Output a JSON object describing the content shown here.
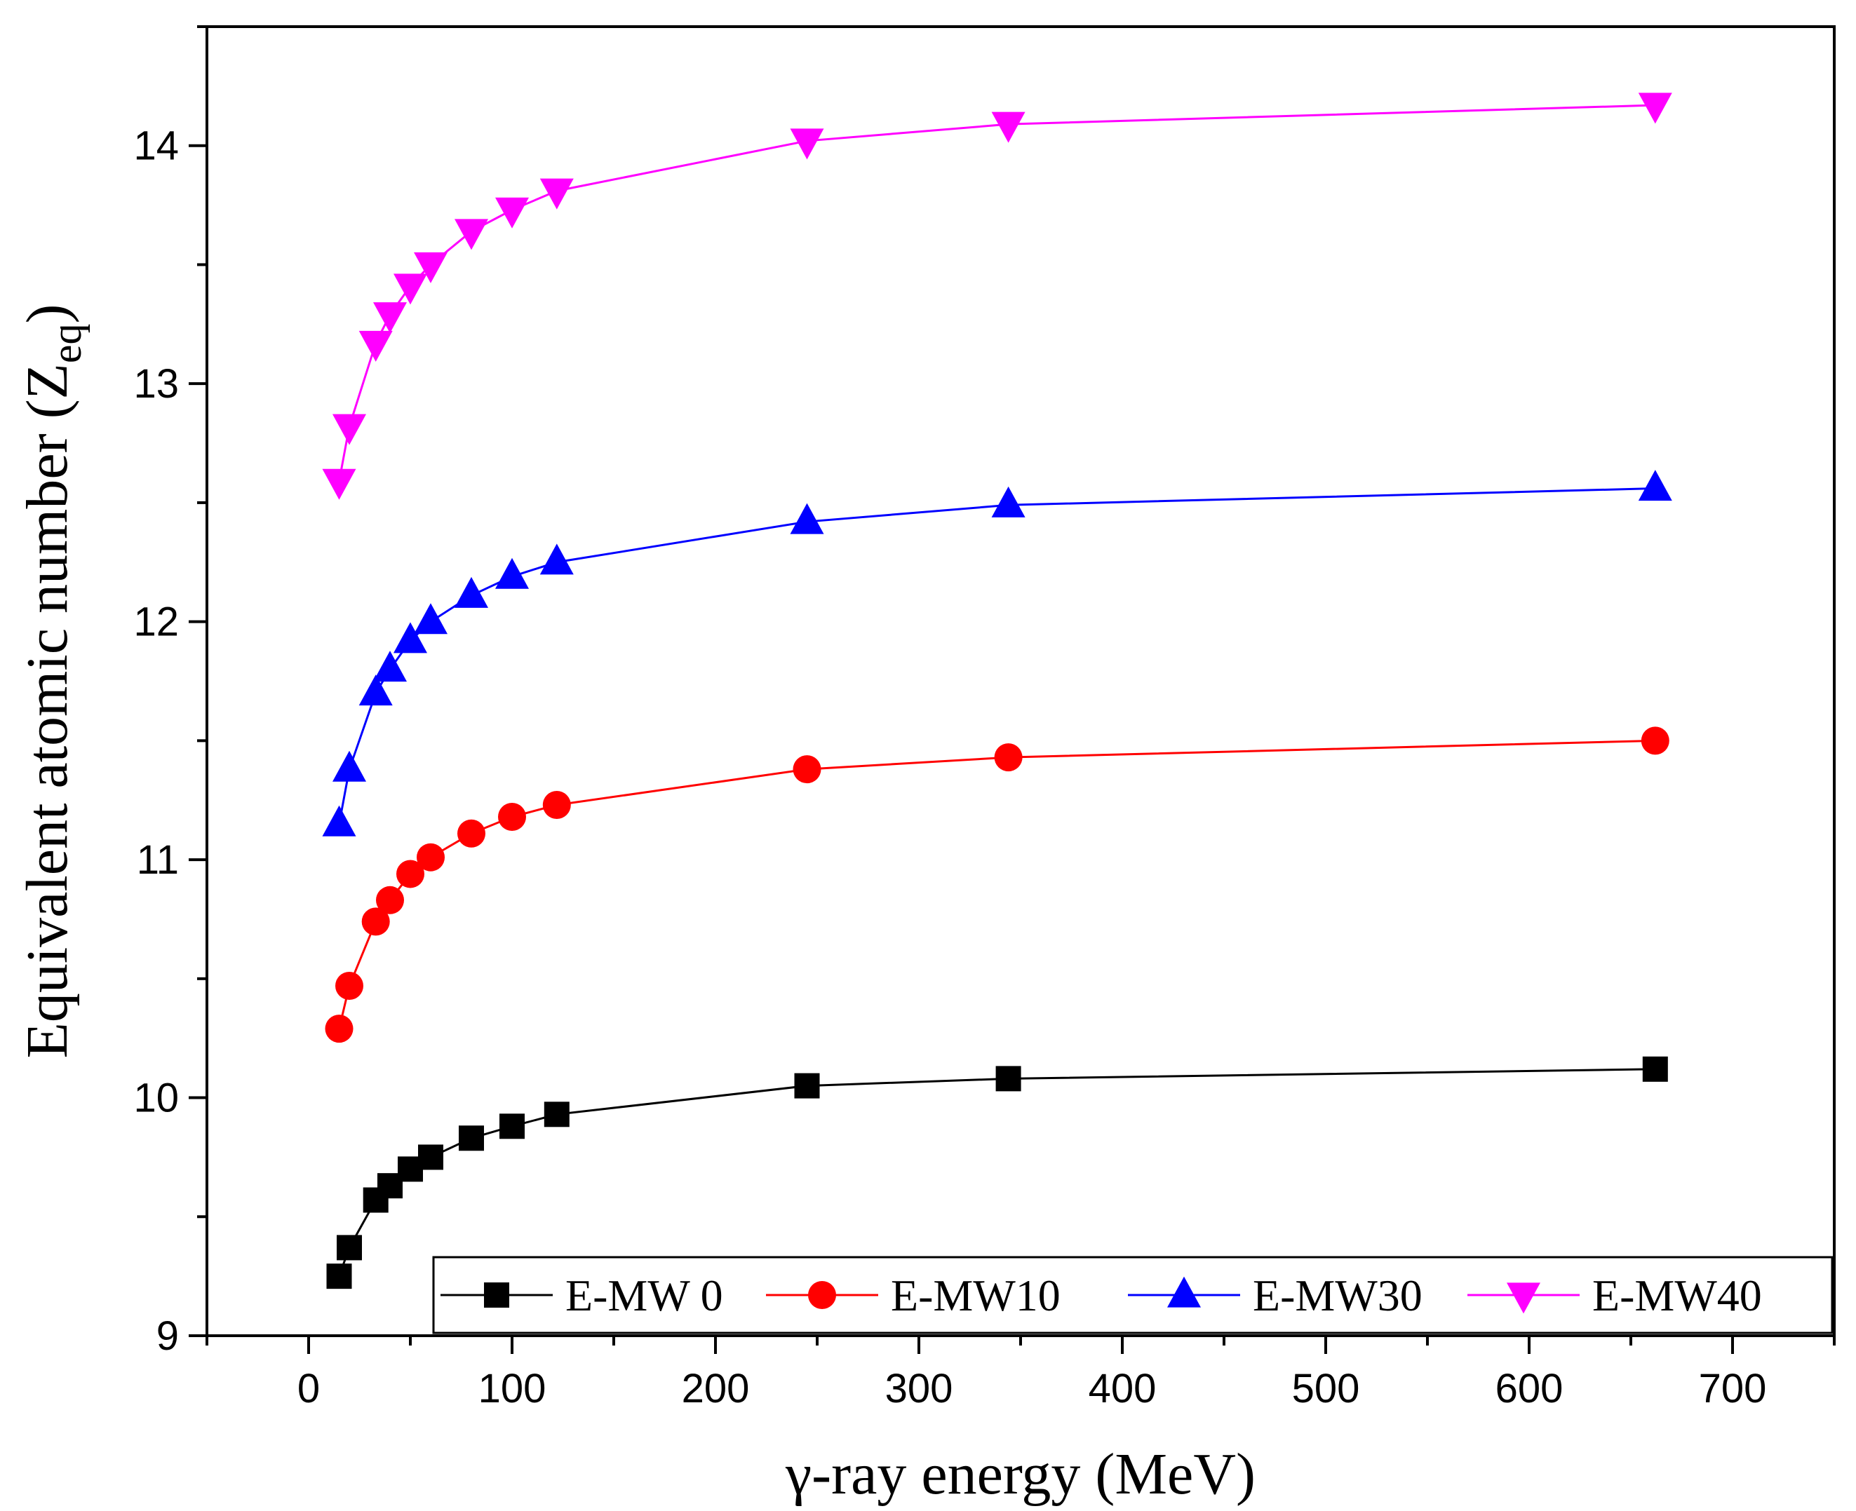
{
  "chart_data": {
    "type": "line",
    "xlabel": "γ-ray energy (MeV)",
    "ylabel_main": "Equivalent atomic number (Z",
    "ylabel_sub": "eq",
    "ylabel_close": ")",
    "xlim": [
      -50,
      750
    ],
    "ylim": [
      9,
      14.5
    ],
    "xticks": [
      0,
      100,
      200,
      300,
      400,
      500,
      600,
      700
    ],
    "yticks": [
      9,
      10,
      11,
      12,
      13,
      14
    ],
    "x": [
      15,
      20,
      33,
      40,
      50,
      60,
      80,
      100,
      122,
      245,
      344,
      662
    ],
    "series": [
      {
        "name": "E-MW 0",
        "color": "#000000",
        "marker": "square",
        "values": [
          9.25,
          9.37,
          9.57,
          9.63,
          9.7,
          9.75,
          9.83,
          9.88,
          9.93,
          10.05,
          10.08,
          10.12
        ]
      },
      {
        "name": "E-MW10",
        "color": "#ff0000",
        "marker": "circle",
        "values": [
          10.29,
          10.47,
          10.74,
          10.83,
          10.94,
          11.01,
          11.11,
          11.18,
          11.23,
          11.38,
          11.43,
          11.5
        ]
      },
      {
        "name": "E-MW30",
        "color": "#0000ff",
        "marker": "triangle-up",
        "values": [
          11.15,
          11.38,
          11.7,
          11.8,
          11.92,
          12.0,
          12.11,
          12.19,
          12.25,
          12.42,
          12.49,
          12.56
        ]
      },
      {
        "name": "E-MW40",
        "color": "#ff00ff",
        "marker": "triangle-down",
        "values": [
          12.59,
          12.82,
          13.17,
          13.29,
          13.41,
          13.5,
          13.64,
          13.73,
          13.81,
          14.02,
          14.09,
          14.17
        ]
      }
    ],
    "legend_position": "bottom-right"
  }
}
